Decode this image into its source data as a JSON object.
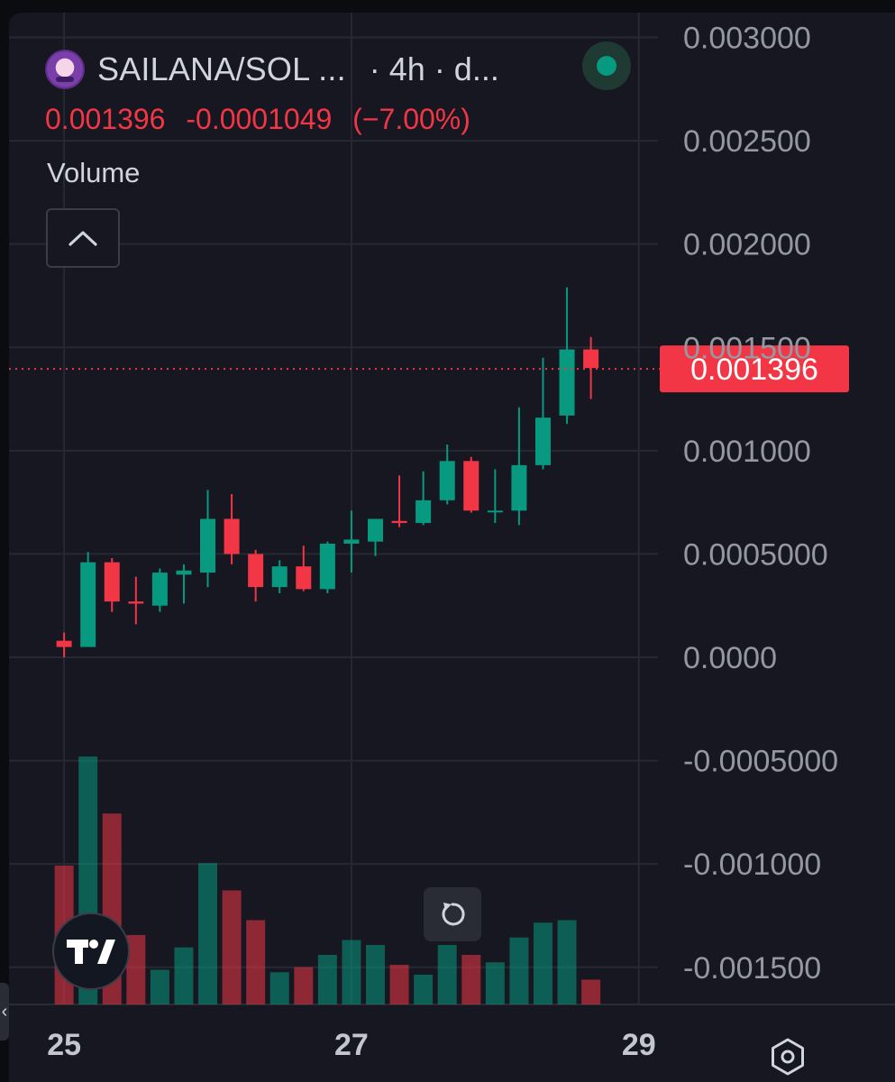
{
  "header": {
    "pair": "SAILANA/SOL ...",
    "interval": "· 4h · d...",
    "price": "0.001396",
    "change": "-0.0001049",
    "change_pct": "(−7.00%)",
    "volume_label": "Volume"
  },
  "icons": {
    "avatar": "token-avatar-icon",
    "status": "status-dot-icon",
    "collapse": "chevron-up-icon",
    "reset": "reset-icon",
    "logo": "tradingview-logo",
    "settings": "settings-icon"
  },
  "colors": {
    "up": "#089981",
    "down": "#f23645",
    "background": "#161720",
    "grid": "#262833",
    "text": "#9598a1"
  },
  "chart_data": {
    "type": "candlestick",
    "interval": "4h",
    "price_axis": {
      "ticks": [
        0.003,
        0.0025,
        0.002,
        0.0015,
        0.001,
        0.0005,
        0.0,
        -0.0005,
        -0.001,
        -0.0015
      ],
      "tick_labels": [
        "0.003000",
        "0.002500",
        "0.002000",
        "0.001500",
        "0.001000",
        "0.0005000",
        "0.0000",
        "-0.0005000",
        "-0.001000",
        "-0.001500"
      ],
      "ylim": [
        -0.00168,
        0.00312
      ]
    },
    "time_axis": {
      "ticks": [
        0,
        12,
        24
      ],
      "tick_labels": [
        "25",
        "27",
        "29"
      ],
      "xlim": [
        -2.3,
        24.8
      ]
    },
    "last_price_label": "0.001396",
    "last_price": 0.001396,
    "candles": [
      {
        "t": 0,
        "o": 8e-05,
        "h": 0.00012,
        "l": 0.0,
        "c": 5e-05
      },
      {
        "t": 1,
        "o": 5e-05,
        "h": 0.00051,
        "l": 5e-05,
        "c": 0.00046
      },
      {
        "t": 2,
        "o": 0.00046,
        "h": 0.00048,
        "l": 0.00022,
        "c": 0.00027
      },
      {
        "t": 3,
        "o": 0.00027,
        "h": 0.00039,
        "l": 0.00016,
        "c": 0.00026
      },
      {
        "t": 4,
        "o": 0.00025,
        "h": 0.00043,
        "l": 0.00022,
        "c": 0.00041
      },
      {
        "t": 5,
        "o": 0.0004,
        "h": 0.00045,
        "l": 0.00026,
        "c": 0.00042
      },
      {
        "t": 6,
        "o": 0.00041,
        "h": 0.00081,
        "l": 0.00034,
        "c": 0.00067
      },
      {
        "t": 7,
        "o": 0.00067,
        "h": 0.00079,
        "l": 0.00045,
        "c": 0.0005
      },
      {
        "t": 8,
        "o": 0.0005,
        "h": 0.00052,
        "l": 0.00027,
        "c": 0.00034
      },
      {
        "t": 9,
        "o": 0.00034,
        "h": 0.00047,
        "l": 0.00031,
        "c": 0.00044
      },
      {
        "t": 10,
        "o": 0.00044,
        "h": 0.00054,
        "l": 0.00032,
        "c": 0.00033
      },
      {
        "t": 11,
        "o": 0.00033,
        "h": 0.00056,
        "l": 0.00031,
        "c": 0.00055
      },
      {
        "t": 12,
        "o": 0.00055,
        "h": 0.00071,
        "l": 0.00041,
        "c": 0.00057
      },
      {
        "t": 13,
        "o": 0.00056,
        "h": 0.00066,
        "l": 0.00049,
        "c": 0.00067
      },
      {
        "t": 14,
        "o": 0.00066,
        "h": 0.00088,
        "l": 0.00063,
        "c": 0.00065
      },
      {
        "t": 15,
        "o": 0.00065,
        "h": 0.0009,
        "l": 0.00064,
        "c": 0.00076
      },
      {
        "t": 16,
        "o": 0.00076,
        "h": 0.00103,
        "l": 0.00074,
        "c": 0.00095
      },
      {
        "t": 17,
        "o": 0.00095,
        "h": 0.00097,
        "l": 0.0007,
        "c": 0.00071
      },
      {
        "t": 18,
        "o": 0.00071,
        "h": 0.00091,
        "l": 0.00065,
        "c": 0.00071
      },
      {
        "t": 19,
        "o": 0.00071,
        "h": 0.00121,
        "l": 0.00064,
        "c": 0.00093
      },
      {
        "t": 20,
        "o": 0.00093,
        "h": 0.00145,
        "l": 0.00091,
        "c": 0.00116
      },
      {
        "t": 21,
        "o": 0.00117,
        "h": 0.00179,
        "l": 0.00113,
        "c": 0.00149
      },
      {
        "t": 22,
        "o": 0.00149,
        "h": 0.00155,
        "l": 0.00125,
        "c": 0.0014
      }
    ],
    "volume_relative": [
      0.56,
      1.0,
      0.77,
      0.28,
      0.14,
      0.23,
      0.57,
      0.46,
      0.34,
      0.13,
      0.15,
      0.2,
      0.26,
      0.24,
      0.16,
      0.12,
      0.24,
      0.2,
      0.17,
      0.27,
      0.33,
      0.34,
      0.1
    ]
  }
}
